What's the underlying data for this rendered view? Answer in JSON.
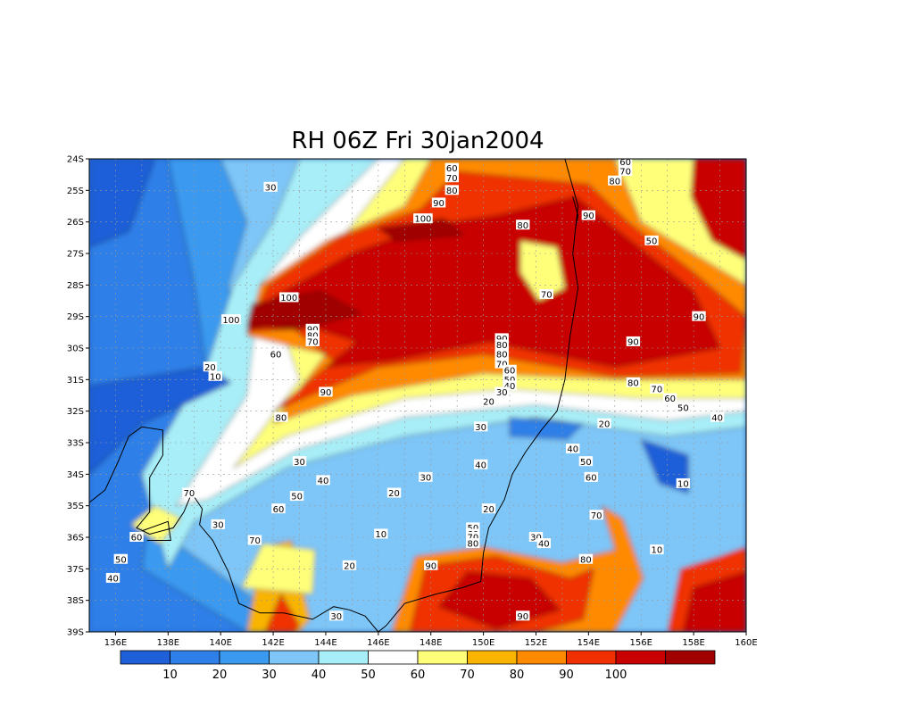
{
  "title": "RH 06Z Fri 30jan2004",
  "colors": {
    "c1": "#1f5fd8",
    "c2": "#2f7fe8",
    "c3": "#3a9af0",
    "c4": "#7ec6f8",
    "c5": "#a8eef8",
    "c6": "#ffffff",
    "c7": "#ffff7a",
    "c8": "#f9b400",
    "c9": "#ff8a00",
    "c10": "#f03000",
    "c11": "#c80000",
    "c12": "#a00000"
  },
  "lat_ticks": [
    "24S",
    "25S",
    "26S",
    "27S",
    "28S",
    "29S",
    "30S",
    "31S",
    "32S",
    "33S",
    "34S",
    "35S",
    "36S",
    "37S",
    "38S",
    "39S"
  ],
  "lon_ticks": [
    "136E",
    "138E",
    "140E",
    "142E",
    "144E",
    "146E",
    "148E",
    "150E",
    "152E",
    "154E",
    "156E",
    "158E",
    "160E"
  ],
  "colorbar": {
    "labels": [
      "10",
      "20",
      "30",
      "40",
      "50",
      "60",
      "70",
      "80",
      "90",
      "100"
    ]
  },
  "contour_labels": [
    {
      "t": "60",
      "lon": 148.8,
      "lat": 24.3
    },
    {
      "t": "70",
      "lon": 148.8,
      "lat": 24.6
    },
    {
      "t": "80",
      "lon": 148.8,
      "lat": 25.0
    },
    {
      "t": "90",
      "lon": 148.3,
      "lat": 25.4
    },
    {
      "t": "100",
      "lon": 147.7,
      "lat": 25.9
    },
    {
      "t": "30",
      "lon": 141.9,
      "lat": 24.9
    },
    {
      "t": "60",
      "lon": 155.4,
      "lat": 24.1
    },
    {
      "t": "70",
      "lon": 155.4,
      "lat": 24.4
    },
    {
      "t": "80",
      "lon": 155.0,
      "lat": 24.7
    },
    {
      "t": "90",
      "lon": 154.0,
      "lat": 25.8
    },
    {
      "t": "80",
      "lon": 151.5,
      "lat": 26.1
    },
    {
      "t": "50",
      "lon": 156.4,
      "lat": 26.6
    },
    {
      "t": "70",
      "lon": 152.4,
      "lat": 28.3
    },
    {
      "t": "100",
      "lon": 142.6,
      "lat": 28.4
    },
    {
      "t": "100",
      "lon": 140.4,
      "lat": 29.1
    },
    {
      "t": "90",
      "lon": 143.5,
      "lat": 29.4
    },
    {
      "t": "80",
      "lon": 143.5,
      "lat": 29.6
    },
    {
      "t": "70",
      "lon": 143.5,
      "lat": 29.8
    },
    {
      "t": "60",
      "lon": 142.1,
      "lat": 30.2
    },
    {
      "t": "90",
      "lon": 158.2,
      "lat": 29.0
    },
    {
      "t": "90",
      "lon": 150.7,
      "lat": 29.7
    },
    {
      "t": "80",
      "lon": 150.7,
      "lat": 29.9
    },
    {
      "t": "90",
      "lon": 155.7,
      "lat": 29.8
    },
    {
      "t": "80",
      "lon": 150.7,
      "lat": 30.2
    },
    {
      "t": "70",
      "lon": 150.7,
      "lat": 30.5
    },
    {
      "t": "60",
      "lon": 151.0,
      "lat": 30.7
    },
    {
      "t": "50",
      "lon": 151.0,
      "lat": 31.0
    },
    {
      "t": "40",
      "lon": 151.0,
      "lat": 31.2
    },
    {
      "t": "30",
      "lon": 150.7,
      "lat": 31.4
    },
    {
      "t": "20",
      "lon": 150.2,
      "lat": 31.7
    },
    {
      "t": "20",
      "lon": 139.6,
      "lat": 30.6
    },
    {
      "t": "10",
      "lon": 139.8,
      "lat": 30.9
    },
    {
      "t": "90",
      "lon": 144.0,
      "lat": 31.4
    },
    {
      "t": "80",
      "lon": 155.7,
      "lat": 31.1
    },
    {
      "t": "70",
      "lon": 156.6,
      "lat": 31.3
    },
    {
      "t": "60",
      "lon": 157.1,
      "lat": 31.6
    },
    {
      "t": "50",
      "lon": 157.6,
      "lat": 31.9
    },
    {
      "t": "40",
      "lon": 158.9,
      "lat": 32.2
    },
    {
      "t": "80",
      "lon": 142.3,
      "lat": 32.2
    },
    {
      "t": "20",
      "lon": 154.6,
      "lat": 32.4
    },
    {
      "t": "30",
      "lon": 149.9,
      "lat": 32.5
    },
    {
      "t": "40",
      "lon": 153.4,
      "lat": 33.2
    },
    {
      "t": "50",
      "lon": 153.9,
      "lat": 33.6
    },
    {
      "t": "40",
      "lon": 149.9,
      "lat": 33.7
    },
    {
      "t": "30",
      "lon": 143.0,
      "lat": 33.6
    },
    {
      "t": "30",
      "lon": 147.8,
      "lat": 34.1
    },
    {
      "t": "60",
      "lon": 154.1,
      "lat": 34.1
    },
    {
      "t": "10",
      "lon": 157.6,
      "lat": 34.3
    },
    {
      "t": "40",
      "lon": 143.9,
      "lat": 34.2
    },
    {
      "t": "20",
      "lon": 146.6,
      "lat": 34.6
    },
    {
      "t": "70",
      "lon": 138.8,
      "lat": 34.6
    },
    {
      "t": "50",
      "lon": 142.9,
      "lat": 34.7
    },
    {
      "t": "60",
      "lon": 142.2,
      "lat": 35.1
    },
    {
      "t": "20",
      "lon": 150.2,
      "lat": 35.1
    },
    {
      "t": "70",
      "lon": 154.3,
      "lat": 35.3
    },
    {
      "t": "30",
      "lon": 139.9,
      "lat": 35.6
    },
    {
      "t": "10",
      "lon": 146.1,
      "lat": 35.9
    },
    {
      "t": "50",
      "lon": 149.6,
      "lat": 35.7
    },
    {
      "t": "60",
      "lon": 149.6,
      "lat": 35.9
    },
    {
      "t": "70",
      "lon": 149.6,
      "lat": 36.0
    },
    {
      "t": "80",
      "lon": 149.6,
      "lat": 36.2
    },
    {
      "t": "30",
      "lon": 152.0,
      "lat": 36.0
    },
    {
      "t": "40",
      "lon": 152.3,
      "lat": 36.2
    },
    {
      "t": "60",
      "lon": 136.8,
      "lat": 36.0
    },
    {
      "t": "70",
      "lon": 141.3,
      "lat": 36.1
    },
    {
      "t": "10",
      "lon": 156.6,
      "lat": 36.4
    },
    {
      "t": "50",
      "lon": 136.2,
      "lat": 36.7
    },
    {
      "t": "80",
      "lon": 153.9,
      "lat": 36.7
    },
    {
      "t": "90",
      "lon": 148.0,
      "lat": 36.9
    },
    {
      "t": "20",
      "lon": 144.9,
      "lat": 36.9
    },
    {
      "t": "40",
      "lon": 135.9,
      "lat": 37.3
    },
    {
      "t": "30",
      "lon": 144.4,
      "lat": 38.5
    },
    {
      "t": "90",
      "lon": 151.5,
      "lat": 38.5
    }
  ]
}
